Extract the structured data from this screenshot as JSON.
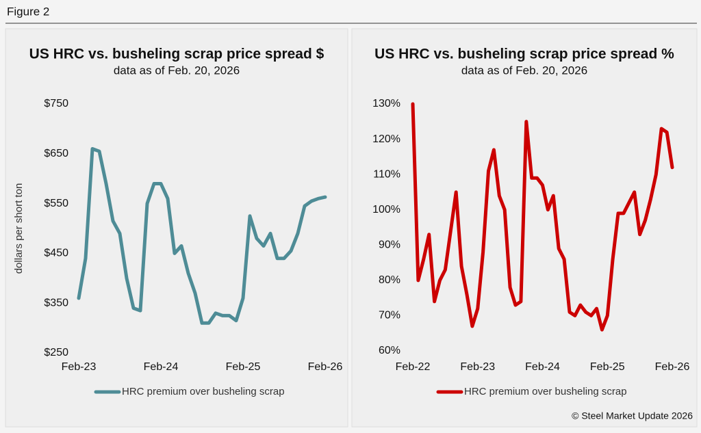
{
  "figure_label": "Figure 2",
  "credit": "© Steel Market Update 2026",
  "chart_data": [
    {
      "type": "line",
      "title": "US HRC vs. busheling scrap price spread $",
      "subtitle": "data as of Feb. 20, 2026",
      "y_label": "dollars per short ton",
      "x": [
        "2023-02",
        "2023-03",
        "2023-04",
        "2023-05",
        "2023-06",
        "2023-07",
        "2023-08",
        "2023-09",
        "2023-10",
        "2023-11",
        "2023-12",
        "2024-01",
        "2024-02",
        "2024-03",
        "2024-04",
        "2024-05",
        "2024-06",
        "2024-07",
        "2024-08",
        "2024-09",
        "2024-10",
        "2024-11",
        "2024-12",
        "2025-01",
        "2025-02",
        "2025-03",
        "2025-04",
        "2025-05",
        "2025-06",
        "2025-07",
        "2025-08",
        "2025-09",
        "2025-10",
        "2025-11",
        "2025-12",
        "2026-01",
        "2026-02"
      ],
      "series": [
        {
          "name": "HRC premium over busheling scrap",
          "color": "#4e8c96",
          "values": [
            360,
            440,
            660,
            655,
            590,
            515,
            490,
            400,
            340,
            335,
            550,
            590,
            590,
            560,
            450,
            465,
            410,
            370,
            310,
            310,
            330,
            325,
            325,
            315,
            360,
            525,
            480,
            465,
            490,
            440,
            440,
            455,
            490,
            545,
            555,
            560,
            563
          ]
        }
      ],
      "xlim": [
        "2023-02",
        "2026-02"
      ],
      "xticks": [
        {
          "value": "2023-02",
          "label": "Feb-23"
        },
        {
          "value": "2024-02",
          "label": "Feb-24"
        },
        {
          "value": "2025-02",
          "label": "Feb-25"
        },
        {
          "value": "2026-02",
          "label": "Feb-26"
        }
      ],
      "ylim": [
        250,
        750
      ],
      "yticks": [
        {
          "value": 250,
          "label": "$250"
        },
        {
          "value": 350,
          "label": "$350"
        },
        {
          "value": 450,
          "label": "$450"
        },
        {
          "value": 550,
          "label": "$550"
        },
        {
          "value": 650,
          "label": "$650"
        },
        {
          "value": 750,
          "label": "$750"
        }
      ],
      "grid": false,
      "legend": "bottom"
    },
    {
      "type": "line",
      "title": "US HRC vs. busheling scrap price spread %",
      "subtitle": "data as of Feb. 20, 2026",
      "x": [
        "2022-02",
        "2022-03",
        "2022-04",
        "2022-05",
        "2022-06",
        "2022-07",
        "2022-08",
        "2022-09",
        "2022-10",
        "2022-11",
        "2022-12",
        "2023-01",
        "2023-02",
        "2023-03",
        "2023-04",
        "2023-05",
        "2023-06",
        "2023-07",
        "2023-08",
        "2023-09",
        "2023-10",
        "2023-11",
        "2023-12",
        "2024-01",
        "2024-02",
        "2024-03",
        "2024-04",
        "2024-05",
        "2024-06",
        "2024-07",
        "2024-08",
        "2024-09",
        "2024-10",
        "2024-11",
        "2024-12",
        "2025-01",
        "2025-02",
        "2025-03",
        "2025-04",
        "2025-05",
        "2025-06",
        "2025-07",
        "2025-08",
        "2025-09",
        "2025-10",
        "2025-11",
        "2025-12",
        "2026-01",
        "2026-02"
      ],
      "series": [
        {
          "name": "HRC premium over busheling scrap",
          "color": "#cc0000",
          "values": [
            130,
            80,
            86,
            93,
            74,
            80,
            83,
            94,
            105,
            84,
            76,
            67,
            72,
            88,
            111,
            117,
            104,
            100,
            78,
            73,
            74,
            125,
            109,
            109,
            107,
            100,
            104,
            89,
            86,
            71,
            70,
            73,
            71,
            70,
            72,
            66,
            70,
            86,
            99,
            99,
            102,
            105,
            93,
            97,
            103,
            110,
            123,
            122,
            112
          ]
        }
      ],
      "xlim": [
        "2022-02",
        "2026-02"
      ],
      "xticks": [
        {
          "value": "2022-02",
          "label": "Feb-22"
        },
        {
          "value": "2023-02",
          "label": "Feb-23"
        },
        {
          "value": "2024-02",
          "label": "Feb-24"
        },
        {
          "value": "2025-02",
          "label": "Feb-25"
        },
        {
          "value": "2026-02",
          "label": "Feb-26"
        }
      ],
      "ylim": [
        60,
        130
      ],
      "yticks": [
        {
          "value": 60,
          "label": "60%"
        },
        {
          "value": 70,
          "label": "70%"
        },
        {
          "value": 80,
          "label": "80%"
        },
        {
          "value": 90,
          "label": "90%"
        },
        {
          "value": 100,
          "label": "100%"
        },
        {
          "value": 110,
          "label": "110%"
        },
        {
          "value": 120,
          "label": "120%"
        },
        {
          "value": 130,
          "label": "130%"
        }
      ],
      "grid": false,
      "legend": "bottom"
    }
  ]
}
